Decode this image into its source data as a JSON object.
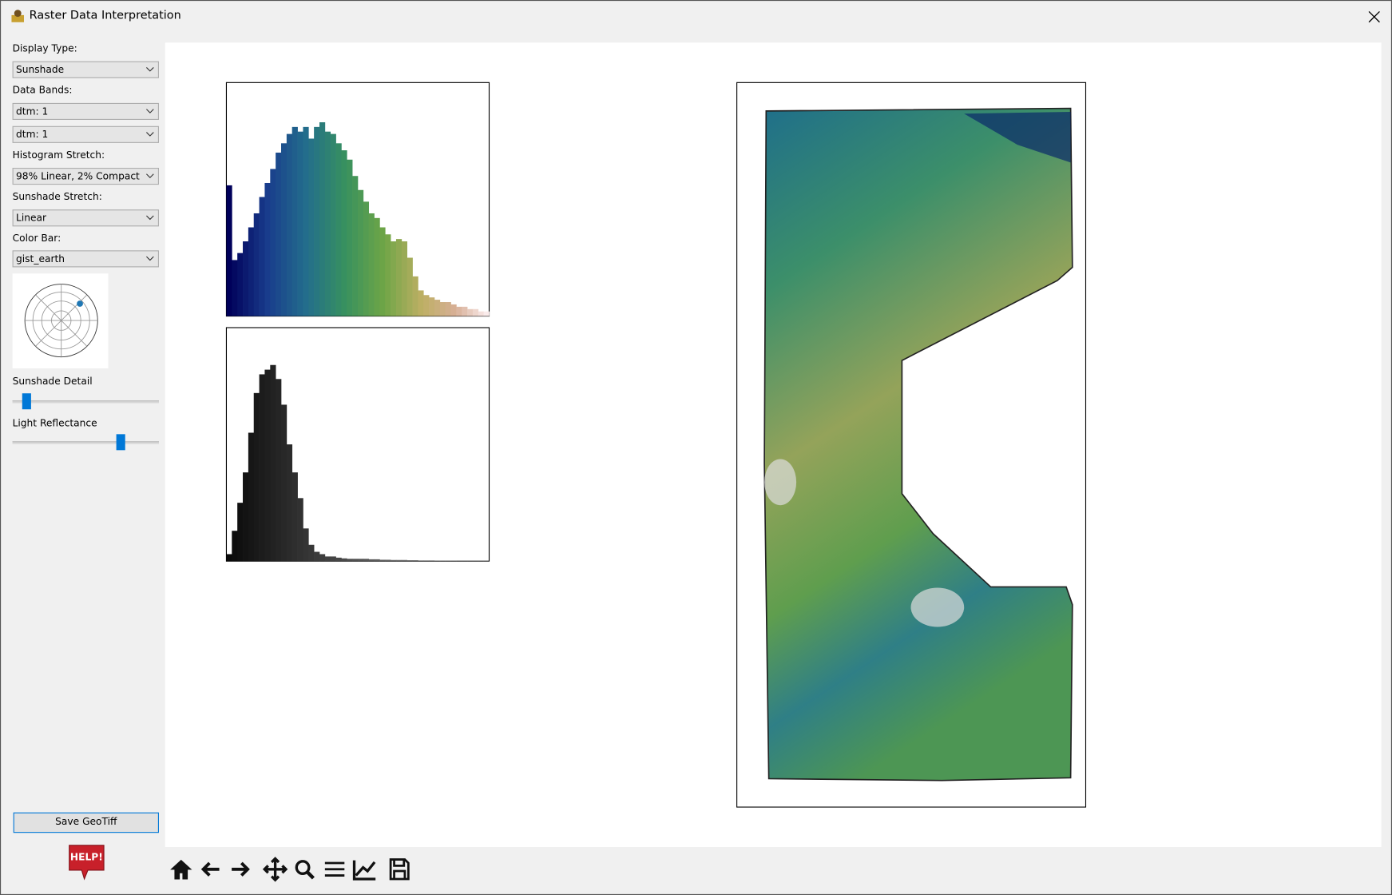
{
  "window": {
    "title": "Raster Data Interpretation"
  },
  "sidebar": {
    "fields": [
      {
        "label": "Display Type:",
        "options": [
          "Sunshade"
        ]
      },
      {
        "label": "Data Bands:",
        "options": [
          "dtm: 1",
          "dtm: 1"
        ]
      },
      {
        "label": "Histogram Stretch:",
        "options": [
          "98% Linear, 2% Compact"
        ]
      },
      {
        "label": "Sunshade Stretch:",
        "options": [
          "Linear"
        ]
      },
      {
        "label": "Color Bar:",
        "options": [
          "gist_earth"
        ]
      }
    ],
    "sliders": [
      "Sunshade Detail",
      "Light Reflectance"
    ],
    "save_button": "Save GeoTiff",
    "help": "HELP!"
  },
  "histograms": [
    {
      "name": "color",
      "ylim": [
        0,
        100
      ],
      "values": [
        56,
        24,
        27,
        32,
        38,
        44,
        51,
        57,
        63,
        70,
        74,
        78,
        81,
        79,
        81,
        76,
        81,
        83,
        79,
        78,
        74,
        71,
        67,
        60,
        54,
        49,
        44,
        42,
        38,
        35,
        32,
        33,
        32,
        25,
        17,
        11,
        9,
        8,
        7,
        6,
        6,
        5,
        4,
        4,
        3,
        3,
        2,
        2
      ]
    },
    {
      "name": "gray",
      "ylim": [
        0,
        100
      ],
      "values": [
        3,
        13,
        25,
        38,
        55,
        72,
        80,
        82,
        84,
        78,
        67,
        50,
        38,
        27,
        14,
        7,
        4,
        3,
        2,
        2,
        1.5,
        1.2,
        1,
        1,
        1,
        1,
        0.8,
        0.8,
        0.6,
        0.6,
        0.5,
        0.5,
        0.5,
        0.4,
        0.4,
        0.3,
        0.3,
        0.3,
        0.2,
        0.2,
        0.2,
        0.2,
        0.1,
        0.1,
        0.1,
        0.1,
        0.1,
        0.1
      ]
    }
  ]
}
